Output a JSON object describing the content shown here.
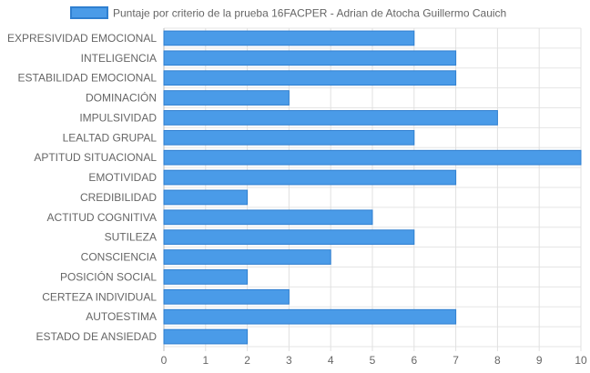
{
  "chart_data": {
    "type": "bar",
    "orientation": "horizontal",
    "categories": [
      "EXPRESIVIDAD EMOCIONAL",
      "INTELIGENCIA",
      "ESTABILIDAD EMOCIONAL",
      "DOMINACIÓN",
      "IMPULSIVIDAD",
      "LEALTAD GRUPAL",
      "APTITUD SITUACIONAL",
      "EMOTIVIDAD",
      "CREDIBILIDAD",
      "ACTITUD COGNITIVA",
      "SUTILEZA",
      "CONSCIENCIA",
      "POSICIÓN SOCIAL",
      "CERTEZA INDIVIDUAL",
      "AUTOESTIMA",
      "ESTADO DE ANSIEDAD"
    ],
    "series": [
      {
        "name": "Puntaje por criterio de la prueba 16FACPER - Adrian de Atocha Guillermo Cauich",
        "values": [
          6,
          7,
          7,
          3,
          8,
          6,
          10,
          7,
          2,
          5,
          6,
          4,
          2,
          3,
          7,
          2
        ],
        "color": "#4a9be8",
        "border_color": "#2f7fd0"
      }
    ],
    "xlim": [
      0,
      10
    ],
    "x_ticks": [
      "0",
      "1",
      "2",
      "3",
      "4",
      "5",
      "6",
      "7",
      "8",
      "9",
      "10"
    ],
    "grid": true,
    "legend_position": "top"
  }
}
